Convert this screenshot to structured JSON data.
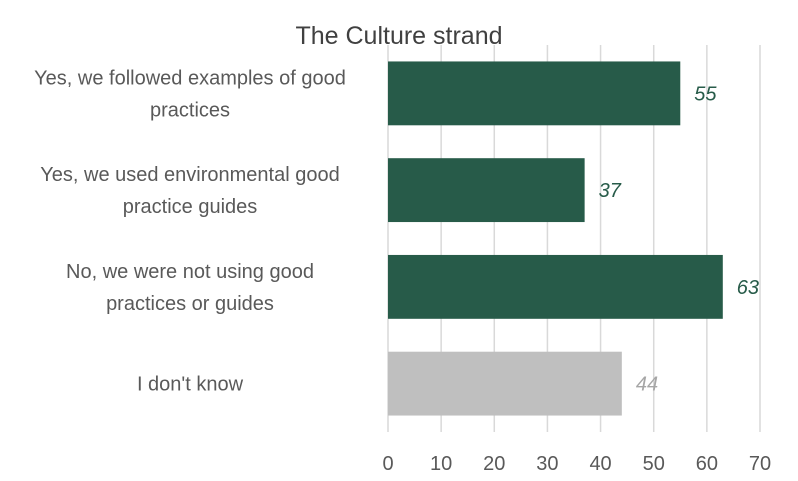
{
  "chart_data": {
    "type": "bar",
    "orientation": "horizontal",
    "title": "The Culture strand",
    "categories": [
      [
        "Yes, we followed examples of good",
        "practices"
      ],
      [
        "Yes, we used environmental good",
        "practice guides"
      ],
      [
        "No, we were not using good",
        "practices or guides"
      ],
      [
        "I don't know"
      ]
    ],
    "values": [
      55,
      37,
      63,
      44
    ],
    "bar_colors": [
      "#275b49",
      "#275b49",
      "#275b49",
      "#bfbfbf"
    ],
    "label_colors": [
      "#275b49",
      "#275b49",
      "#275b49",
      "#a6a6a6"
    ],
    "xlim": [
      0,
      70
    ],
    "xticks": [
      0,
      10,
      20,
      30,
      40,
      50,
      60,
      70
    ],
    "grid": true,
    "xlabel": "",
    "ylabel": ""
  }
}
